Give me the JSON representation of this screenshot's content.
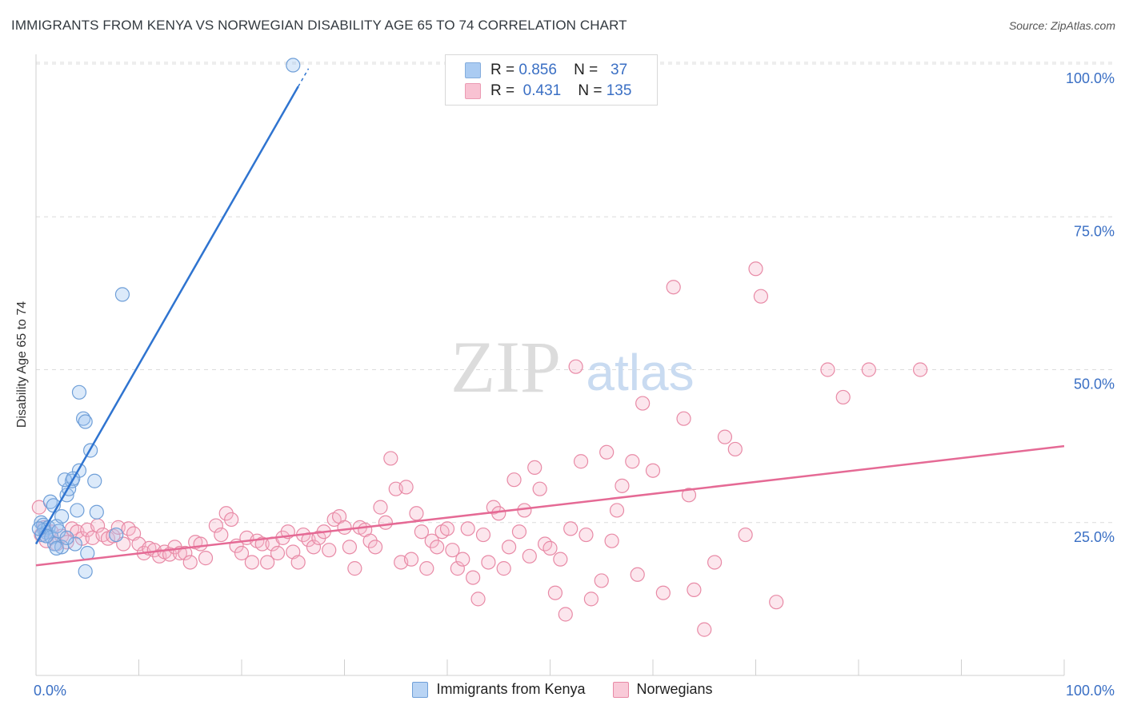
{
  "header": {
    "title": "IMMIGRANTS FROM KENYA VS NORWEGIAN DISABILITY AGE 65 TO 74 CORRELATION CHART",
    "source": "Source: ZipAtlas.com"
  },
  "watermark": {
    "zip": "ZIP",
    "atlas": "atlas"
  },
  "legend": {
    "rows": [
      {
        "r_label": "R =",
        "r_value": "0.856",
        "n_label": "N =",
        "n_value": "37",
        "color": "#9cc3f0",
        "stroke": "#6f9fd8"
      },
      {
        "r_label": "R =",
        "r_value": "0.431",
        "n_label": "N =",
        "n_value": "135",
        "color": "#f7b8cb",
        "stroke": "#e88aa6"
      }
    ]
  },
  "bottom_legend": [
    {
      "label": "Immigrants from Kenya",
      "color": "#b9d4f4",
      "stroke": "#6f9fd8"
    },
    {
      "label": "Norwegians",
      "color": "#f9cad8",
      "stroke": "#e88aa6"
    }
  ],
  "colors": {
    "kenya_fill": "rgba(156,195,240,0.35)",
    "kenya_stroke": "#6f9fd8",
    "kenya_line": "#2f74d0",
    "norw_fill": "rgba(247,184,203,0.35)",
    "norw_stroke": "#e88aa6",
    "norw_line": "#e56a95",
    "axis_label": "#3a6fc4",
    "grid": "#dcdcdc"
  },
  "chart_data": {
    "type": "scatter",
    "title": "IMMIGRANTS FROM KENYA VS NORWEGIAN DISABILITY AGE 65 TO 74 CORRELATION CHART",
    "xlabel": "",
    "ylabel": "Disability Age 65 to 74",
    "xlim": [
      0,
      100
    ],
    "ylim": [
      0,
      100
    ],
    "x_tick_labels": [
      "0.0%",
      "100.0%"
    ],
    "y_tick_labels": [
      "25.0%",
      "50.0%",
      "75.0%",
      "100.0%"
    ],
    "y_ticks": [
      25,
      50,
      75,
      100
    ],
    "grid": true,
    "legend_position": "top-center",
    "series": [
      {
        "name": "Immigrants from Kenya",
        "r": 0.856,
        "n": 37,
        "trend": {
          "x": [
            0,
            25.5
          ],
          "y": [
            21.5,
            96.3
          ]
        },
        "points": [
          [
            0.5,
            25.0
          ],
          [
            0.7,
            24.6
          ],
          [
            0.8,
            23.8
          ],
          [
            1.0,
            23.4
          ],
          [
            1.2,
            24.2
          ],
          [
            0.6,
            23.0
          ],
          [
            1.5,
            22.6
          ],
          [
            1.8,
            21.5
          ],
          [
            2.0,
            24.4
          ],
          [
            2.2,
            23.6
          ],
          [
            1.4,
            28.4
          ],
          [
            1.7,
            27.8
          ],
          [
            2.5,
            26.0
          ],
          [
            3.0,
            29.5
          ],
          [
            3.2,
            30.5
          ],
          [
            3.5,
            31.8
          ],
          [
            2.8,
            32.0
          ],
          [
            4.0,
            27.0
          ],
          [
            4.2,
            33.5
          ],
          [
            3.6,
            32.2
          ],
          [
            5.0,
            20.0
          ],
          [
            3.8,
            21.5
          ],
          [
            2.5,
            21.0
          ],
          [
            4.2,
            46.3
          ],
          [
            4.6,
            42.0
          ],
          [
            4.8,
            41.5
          ],
          [
            5.3,
            36.8
          ],
          [
            5.7,
            31.8
          ],
          [
            5.9,
            26.7
          ],
          [
            7.8,
            23.0
          ],
          [
            8.4,
            62.3
          ],
          [
            4.8,
            17.0
          ],
          [
            3.0,
            22.5
          ],
          [
            1.0,
            22.8
          ],
          [
            25.0,
            99.8
          ],
          [
            0.3,
            24.0
          ],
          [
            2.0,
            20.8
          ]
        ]
      },
      {
        "name": "Norwegians",
        "r": 0.431,
        "n": 135,
        "trend": {
          "x": [
            0,
            100
          ],
          "y": [
            18.0,
            37.5
          ]
        },
        "points": [
          [
            0.3,
            27.5
          ],
          [
            0.5,
            23.0
          ],
          [
            0.8,
            24.2
          ],
          [
            1.0,
            22.0
          ],
          [
            1.5,
            23.5
          ],
          [
            2.0,
            21.5
          ],
          [
            2.5,
            22.8
          ],
          [
            3.0,
            21.8
          ],
          [
            3.5,
            24.0
          ],
          [
            4.0,
            23.5
          ],
          [
            4.5,
            22.4
          ],
          [
            5.0,
            23.8
          ],
          [
            5.5,
            22.5
          ],
          [
            6.0,
            24.5
          ],
          [
            6.5,
            23.0
          ],
          [
            7.0,
            22.4
          ],
          [
            7.5,
            22.8
          ],
          [
            8.0,
            24.2
          ],
          [
            8.5,
            21.5
          ],
          [
            9.0,
            24.0
          ],
          [
            9.5,
            23.2
          ],
          [
            10.0,
            21.5
          ],
          [
            10.5,
            20.0
          ],
          [
            11.0,
            20.8
          ],
          [
            11.5,
            20.5
          ],
          [
            12.0,
            19.5
          ],
          [
            12.5,
            20.2
          ],
          [
            13.0,
            19.8
          ],
          [
            13.5,
            21.0
          ],
          [
            14.0,
            20.0
          ],
          [
            14.5,
            20.0
          ],
          [
            15.0,
            18.5
          ],
          [
            15.5,
            21.8
          ],
          [
            16.0,
            21.5
          ],
          [
            16.5,
            19.2
          ],
          [
            17.5,
            24.5
          ],
          [
            18.0,
            23.0
          ],
          [
            18.5,
            26.5
          ],
          [
            19.0,
            25.5
          ],
          [
            19.5,
            21.2
          ],
          [
            20.0,
            20.0
          ],
          [
            20.5,
            22.5
          ],
          [
            21.0,
            18.5
          ],
          [
            21.5,
            22.0
          ],
          [
            22.0,
            21.5
          ],
          [
            22.5,
            18.5
          ],
          [
            23.0,
            21.5
          ],
          [
            23.5,
            20.0
          ],
          [
            24.0,
            22.5
          ],
          [
            24.5,
            23.5
          ],
          [
            25.0,
            20.2
          ],
          [
            25.5,
            18.5
          ],
          [
            26.0,
            23.0
          ],
          [
            26.5,
            22.2
          ],
          [
            27.0,
            21.0
          ],
          [
            27.5,
            22.5
          ],
          [
            28.0,
            23.5
          ],
          [
            28.5,
            20.5
          ],
          [
            29.0,
            25.5
          ],
          [
            29.5,
            26.0
          ],
          [
            30.0,
            24.2
          ],
          [
            30.5,
            21.0
          ],
          [
            31.0,
            17.5
          ],
          [
            31.5,
            24.2
          ],
          [
            32.0,
            23.8
          ],
          [
            32.5,
            22.0
          ],
          [
            33.0,
            21.0
          ],
          [
            33.5,
            27.5
          ],
          [
            34.0,
            25.0
          ],
          [
            34.5,
            35.5
          ],
          [
            35.0,
            30.5
          ],
          [
            35.5,
            18.5
          ],
          [
            36.0,
            30.8
          ],
          [
            36.5,
            19.0
          ],
          [
            37.0,
            26.5
          ],
          [
            37.5,
            23.5
          ],
          [
            38.0,
            17.5
          ],
          [
            38.5,
            22.0
          ],
          [
            39.0,
            21.0
          ],
          [
            39.5,
            23.5
          ],
          [
            40.0,
            24.0
          ],
          [
            40.5,
            20.5
          ],
          [
            41.0,
            17.5
          ],
          [
            41.5,
            19.0
          ],
          [
            42.0,
            24.0
          ],
          [
            42.5,
            16.0
          ],
          [
            43.0,
            12.5
          ],
          [
            43.5,
            23.0
          ],
          [
            44.0,
            18.5
          ],
          [
            44.5,
            27.5
          ],
          [
            45.0,
            26.5
          ],
          [
            45.5,
            17.5
          ],
          [
            46.0,
            21.0
          ],
          [
            46.5,
            32.0
          ],
          [
            47.0,
            23.5
          ],
          [
            47.5,
            27.0
          ],
          [
            48.0,
            19.5
          ],
          [
            48.5,
            34.0
          ],
          [
            49.0,
            30.5
          ],
          [
            49.5,
            21.5
          ],
          [
            50.0,
            20.8
          ],
          [
            50.5,
            13.5
          ],
          [
            51.0,
            19.0
          ],
          [
            51.5,
            10.0
          ],
          [
            52.0,
            24.0
          ],
          [
            52.5,
            50.5
          ],
          [
            53.0,
            35.0
          ],
          [
            53.5,
            23.0
          ],
          [
            54.0,
            12.5
          ],
          [
            55.0,
            15.5
          ],
          [
            55.5,
            36.5
          ],
          [
            56.0,
            22.0
          ],
          [
            56.5,
            27.0
          ],
          [
            57.0,
            31.0
          ],
          [
            58.0,
            35.0
          ],
          [
            58.5,
            16.5
          ],
          [
            59.0,
            44.5
          ],
          [
            60.0,
            33.5
          ],
          [
            61.0,
            13.5
          ],
          [
            62.0,
            63.5
          ],
          [
            63.0,
            42.0
          ],
          [
            63.5,
            29.5
          ],
          [
            64.0,
            14.0
          ],
          [
            65.0,
            7.5
          ],
          [
            66.0,
            18.5
          ],
          [
            67.0,
            39.0
          ],
          [
            68.0,
            37.0
          ],
          [
            69.0,
            23.0
          ],
          [
            70.0,
            66.5
          ],
          [
            70.5,
            62.0
          ],
          [
            72.0,
            12.0
          ],
          [
            77.0,
            50.0
          ],
          [
            78.5,
            45.5
          ],
          [
            81.0,
            50.0
          ],
          [
            86.0,
            50.0
          ]
        ]
      }
    ]
  }
}
